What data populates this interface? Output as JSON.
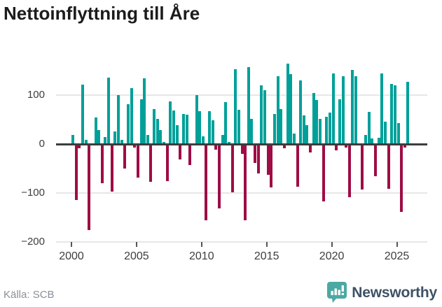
{
  "title": "Nettoinflyttning till Åre",
  "source": "Källa: SCB",
  "logo": {
    "text": "Newsworthy",
    "icon_color": "#4CA8A3",
    "text_color": "#3E5166"
  },
  "colors": {
    "positive_bar": "#00A099",
    "negative_bar": "#9E0D45",
    "zero_line": "#3d3d3d",
    "gridline": "#e7e7e7",
    "axis_text": "#3d3d3d",
    "title_text": "#1c1c1c",
    "source_text": "#8a8f98"
  },
  "chart_data": {
    "type": "bar",
    "title": "Nettoinflyttning till Åre",
    "xlabel": "",
    "ylabel": "",
    "ylim": [
      -200,
      195
    ],
    "grid": true,
    "legend": "none",
    "y_ticks": [
      100,
      0,
      -100,
      -200
    ],
    "y_tick_labels": [
      "100",
      "0",
      "−100",
      "−200"
    ],
    "x_tick_years": [
      2000,
      2005,
      2010,
      2015,
      2020,
      2025
    ],
    "x_tick_labels": [
      "2000",
      "2005",
      "2010",
      "2015",
      "2020",
      "2025"
    ],
    "categories": [
      "2000 Q1",
      "2000 Q2",
      "2000 Q3",
      "2000 Q4",
      "2001 Q1",
      "2001 Q2",
      "2001 Q3",
      "2001 Q4",
      "2002 Q1",
      "2002 Q2",
      "2002 Q3",
      "2002 Q4",
      "2003 Q1",
      "2003 Q2",
      "2003 Q3",
      "2003 Q4",
      "2004 Q1",
      "2004 Q2",
      "2004 Q3",
      "2004 Q4",
      "2005 Q1",
      "2005 Q2",
      "2005 Q3",
      "2005 Q4",
      "2006 Q1",
      "2006 Q2",
      "2006 Q3",
      "2006 Q4",
      "2007 Q1",
      "2007 Q2",
      "2007 Q3",
      "2007 Q4",
      "2008 Q1",
      "2008 Q2",
      "2008 Q3",
      "2008 Q4",
      "2009 Q1",
      "2009 Q2",
      "2009 Q3",
      "2009 Q4",
      "2010 Q1",
      "2010 Q2",
      "2010 Q3",
      "2010 Q4",
      "2011 Q1",
      "2011 Q2",
      "2011 Q3",
      "2011 Q4",
      "2012 Q1",
      "2012 Q2",
      "2012 Q3",
      "2012 Q4",
      "2013 Q1",
      "2013 Q2",
      "2013 Q3",
      "2013 Q4",
      "2014 Q1",
      "2014 Q2",
      "2014 Q3",
      "2014 Q4",
      "2015 Q1",
      "2015 Q2",
      "2015 Q3",
      "2015 Q4",
      "2016 Q1",
      "2016 Q2",
      "2016 Q3",
      "2016 Q4",
      "2017 Q1",
      "2017 Q2",
      "2017 Q3",
      "2017 Q4",
      "2018 Q1",
      "2018 Q2",
      "2018 Q3",
      "2018 Q4",
      "2019 Q1",
      "2019 Q2",
      "2019 Q3",
      "2019 Q4",
      "2020 Q1",
      "2020 Q2",
      "2020 Q3",
      "2020 Q4",
      "2021 Q1",
      "2021 Q2",
      "2021 Q3",
      "2021 Q4",
      "2022 Q1",
      "2022 Q2",
      "2022 Q3",
      "2022 Q4",
      "2023 Q1",
      "2023 Q2",
      "2023 Q3",
      "2023 Q4",
      "2024 Q1",
      "2024 Q2",
      "2024 Q3",
      "2024 Q4",
      "2025 Q1",
      "2025 Q2",
      "2025 Q3",
      "2025 Q4"
    ],
    "series": [
      {
        "name": "Nettoinflyttning",
        "values": [
          19,
          -114,
          -8,
          121,
          9,
          -175,
          2,
          55,
          28,
          -80,
          14,
          136,
          -97,
          26,
          100,
          9,
          -50,
          82,
          115,
          -7,
          -68,
          92,
          134,
          19,
          -77,
          71,
          52,
          28,
          5,
          -76,
          87,
          68,
          38,
          -32,
          62,
          60,
          -43,
          2,
          100,
          67,
          16,
          -156,
          67,
          49,
          -12,
          -132,
          19,
          86,
          4,
          -99,
          153,
          70,
          -20,
          -155,
          157,
          51,
          -39,
          -60,
          120,
          110,
          -63,
          -88,
          62,
          138,
          71,
          -8,
          164,
          143,
          21,
          -87,
          130,
          58,
          38,
          -17,
          105,
          90,
          52,
          -117,
          56,
          64,
          145,
          -13,
          92,
          139,
          -7,
          -108,
          151,
          138,
          -3,
          -93,
          18,
          66,
          12,
          -65,
          13,
          144,
          46,
          -92,
          123,
          120,
          43,
          -138,
          -7,
          127
        ]
      }
    ]
  }
}
